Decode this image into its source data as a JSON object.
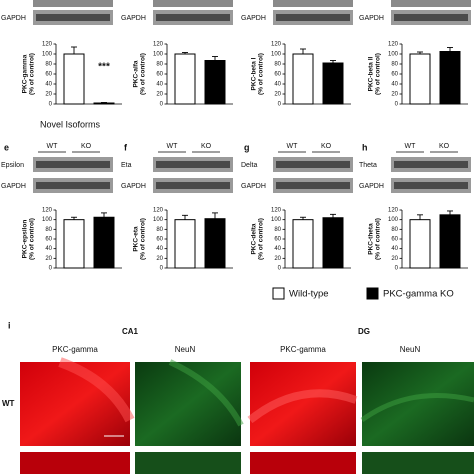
{
  "chart_data": [
    {
      "type": "bar",
      "ylabel": [
        "PKC-gamma",
        "(% of control)"
      ],
      "ylim": [
        0,
        120
      ],
      "yticks": [
        0,
        20,
        40,
        60,
        80,
        100,
        120
      ],
      "values": [
        100,
        2
      ],
      "errors": [
        14,
        1
      ],
      "colors": [
        "#ffffff",
        "#000000"
      ],
      "annotation": "***",
      "blots": [
        "GAPDH"
      ]
    },
    {
      "type": "bar",
      "ylabel": [
        "PKC-alfa",
        "(% of control)"
      ],
      "ylim": [
        0,
        120
      ],
      "yticks": [
        0,
        20,
        40,
        60,
        80,
        100,
        120
      ],
      "values": [
        100,
        87
      ],
      "errors": [
        3,
        8
      ],
      "colors": [
        "#ffffff",
        "#000000"
      ],
      "blots": [
        "GAPDH"
      ]
    },
    {
      "type": "bar",
      "ylabel": [
        "PKC-beta I",
        "(% of control)"
      ],
      "ylim": [
        0,
        120
      ],
      "yticks": [
        0,
        20,
        40,
        60,
        80,
        100,
        120
      ],
      "values": [
        100,
        82
      ],
      "errors": [
        10,
        5
      ],
      "colors": [
        "#ffffff",
        "#000000"
      ],
      "blots": [
        "GAPDH"
      ]
    },
    {
      "type": "bar",
      "ylabel": [
        "PKC-beta II",
        "(% of control)"
      ],
      "ylim": [
        0,
        120
      ],
      "yticks": [
        0,
        20,
        40,
        60,
        80,
        100,
        120
      ],
      "values": [
        100,
        105
      ],
      "errors": [
        4,
        8
      ],
      "colors": [
        "#ffffff",
        "#000000"
      ],
      "blots": [
        "GAPDH"
      ]
    },
    {
      "type": "bar",
      "panel": "e",
      "lanes": [
        "WT",
        "KO"
      ],
      "ylabel": [
        "PKC-epsilon",
        "(% of control)"
      ],
      "ylim": [
        0,
        120
      ],
      "yticks": [
        0,
        20,
        40,
        60,
        80,
        100,
        120
      ],
      "values": [
        100,
        105
      ],
      "errors": [
        5,
        9
      ],
      "colors": [
        "#ffffff",
        "#000000"
      ],
      "blots": [
        "Epsilon",
        "GAPDH"
      ]
    },
    {
      "type": "bar",
      "panel": "f",
      "lanes": [
        "WT",
        "KO"
      ],
      "ylabel": [
        "PKC-eta",
        "(% of control)"
      ],
      "ylim": [
        0,
        120
      ],
      "yticks": [
        0,
        20,
        40,
        60,
        80,
        100,
        120
      ],
      "values": [
        100,
        102
      ],
      "errors": [
        9,
        12
      ],
      "colors": [
        "#ffffff",
        "#000000"
      ],
      "blots": [
        "Eta",
        "GAPDH"
      ]
    },
    {
      "type": "bar",
      "panel": "g",
      "lanes": [
        "WT",
        "KO"
      ],
      "ylabel": [
        "PKC-delta",
        "(% of control)"
      ],
      "ylim": [
        0,
        120
      ],
      "yticks": [
        0,
        20,
        40,
        60,
        80,
        100,
        120
      ],
      "values": [
        100,
        104
      ],
      "errors": [
        5,
        7
      ],
      "colors": [
        "#ffffff",
        "#000000"
      ],
      "blots": [
        "Delta",
        "GAPDH"
      ]
    },
    {
      "type": "bar",
      "panel": "h",
      "lanes": [
        "WT",
        "KO"
      ],
      "ylabel": [
        "PKC-theta",
        "(% of control)"
      ],
      "ylim": [
        0,
        120
      ],
      "yticks": [
        0,
        20,
        40,
        60,
        80,
        100,
        120
      ],
      "values": [
        100,
        110
      ],
      "errors": [
        10,
        8
      ],
      "colors": [
        "#ffffff",
        "#000000"
      ],
      "blots": [
        "Theta",
        "GAPDH"
      ]
    }
  ],
  "section_title": "Novel Isoforms",
  "legend": [
    {
      "name": "Wild-type",
      "color": "#ffffff"
    },
    {
      "name": "PKC-gamma KO",
      "color": "#000000"
    }
  ],
  "panel_i": {
    "label": "i",
    "regions": [
      "CA1",
      "DG"
    ],
    "columns": [
      "PKC-gamma",
      "NeuN",
      "PKC-gamma",
      "NeuN"
    ],
    "rows": [
      "WT"
    ]
  }
}
